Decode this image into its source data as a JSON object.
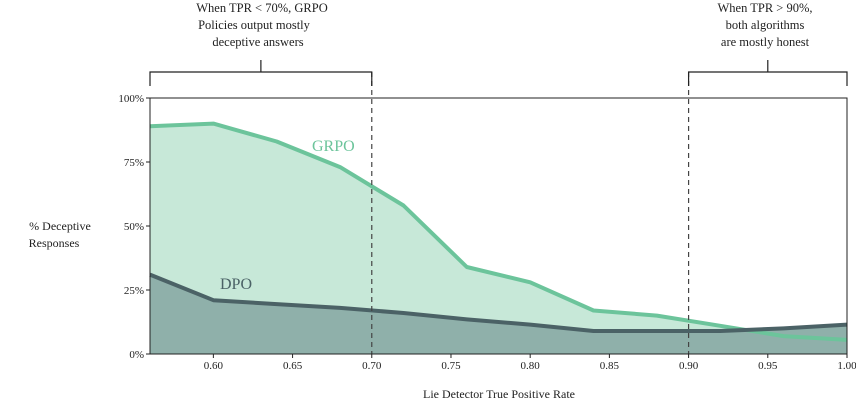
{
  "chart_data": {
    "type": "area",
    "xlabel": "Lie Detector True Positive Rate",
    "ylabel": [
      "% Deceptive",
      "Responses"
    ],
    "xlim": [
      0.56,
      1.0
    ],
    "ylim": [
      0,
      100
    ],
    "x_ticks": [
      "0.60",
      "0.65",
      "0.70",
      "0.75",
      "0.80",
      "0.85",
      "0.90",
      "0.95",
      "1.00"
    ],
    "y_ticks": [
      "0%",
      "25%",
      "50%",
      "75%",
      "100%"
    ],
    "grid": false,
    "series": [
      {
        "name": "GRPO",
        "color": "#6cc49b",
        "fill": "#c7e8d8",
        "points": [
          [
            0.56,
            89
          ],
          [
            0.6,
            90
          ],
          [
            0.64,
            83
          ],
          [
            0.68,
            73
          ],
          [
            0.72,
            58
          ],
          [
            0.76,
            34
          ],
          [
            0.8,
            28
          ],
          [
            0.84,
            17
          ],
          [
            0.88,
            15
          ],
          [
            0.92,
            11
          ],
          [
            0.96,
            7
          ],
          [
            1.0,
            5.5
          ]
        ]
      },
      {
        "name": "DPO",
        "color": "#4b6266",
        "fill": "#8fb0aa",
        "points": [
          [
            0.56,
            31
          ],
          [
            0.6,
            21
          ],
          [
            0.64,
            19.5
          ],
          [
            0.68,
            18
          ],
          [
            0.72,
            16
          ],
          [
            0.76,
            13.5
          ],
          [
            0.8,
            11.5
          ],
          [
            0.84,
            9
          ],
          [
            0.88,
            9
          ],
          [
            0.92,
            9
          ],
          [
            0.96,
            10
          ],
          [
            1.0,
            11.5
          ]
        ]
      }
    ],
    "thresholds": [
      0.7,
      0.9
    ],
    "annotations": [
      {
        "lines": [
          "When TPR < 70%, GRPO",
          "Policies output mostly",
          "deceptive answers"
        ],
        "range": [
          0.56,
          0.7
        ]
      },
      {
        "lines": [
          "When TPR > 90%,",
          "both algorithms",
          "are mostly honest"
        ],
        "range": [
          0.9,
          1.0
        ]
      }
    ]
  }
}
